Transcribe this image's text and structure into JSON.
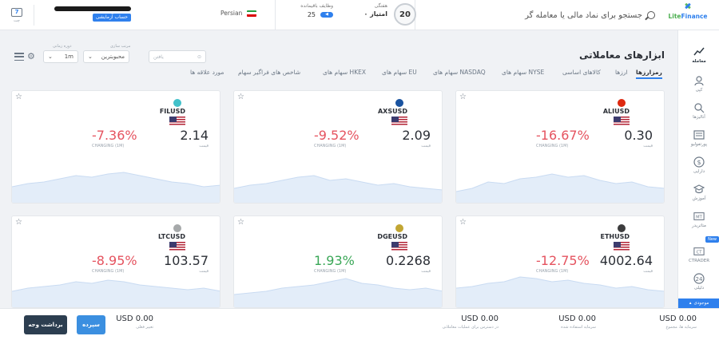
{
  "header": {
    "chat_label": "چت",
    "chat_count": "7",
    "account_badge": "حساب آزمایشی",
    "language": "Persian",
    "tasks_title": "وظایف باقیمانده",
    "tasks_count": "25",
    "weekly_title": "هفتگی",
    "weekly_points": "۰ امتیاز",
    "level": "20",
    "search_placeholder": "جستجو برای نماد مالی یا معامله گر",
    "logo_a": "Lite",
    "logo_b": "Finance"
  },
  "sidebar": {
    "items": [
      {
        "label": "معامله",
        "icon": "chart-icon"
      },
      {
        "label": "کپی",
        "icon": "copy-icon"
      },
      {
        "label": "آنالیزها",
        "icon": "analytics-icon"
      },
      {
        "label": "پورتفولیو",
        "icon": "portfolio-icon"
      },
      {
        "label": "دارایی",
        "icon": "dollar-icon"
      },
      {
        "label": "آموزش",
        "icon": "education-icon"
      },
      {
        "label": "متاتریدر",
        "icon": "metatrader-icon"
      },
      {
        "label": "CTRADER",
        "icon": "ctrader-icon"
      },
      {
        "label": "دلیلی",
        "icon": "other-icon"
      }
    ],
    "new_tag": "New",
    "bottom_label": "موجودی"
  },
  "main": {
    "title": "ابزارهای معاملاتی",
    "search_placeholder": "یافتن",
    "sort_label": "مرتب سازی",
    "sort_value": "محبوبترین",
    "period_label": "دوره زمانی",
    "period_value": "1m",
    "tabs": [
      {
        "label": "رمزارزها",
        "active": true
      },
      {
        "label": "ارزها",
        "active": false
      },
      {
        "label": "کالاهای اساسی",
        "active": false
      },
      {
        "label": "سهام های NYSE",
        "active": false
      },
      {
        "label": "سهام های NASDAQ",
        "active": false
      },
      {
        "label": "سهام های EU",
        "active": false
      },
      {
        "label": "سهام های HKEX",
        "active": false
      },
      {
        "label": "شاخص های فراگیر سهام",
        "active": false
      },
      {
        "label": "مورد علاقه ها",
        "active": false
      }
    ]
  },
  "cards": [
    {
      "symbol": "ALIUSD",
      "price": "0.30",
      "price_label": "قیمت",
      "change": "-16.67%",
      "change_label": "CHANGING (1M)",
      "positive": false,
      "coin": "flag-hk-icon",
      "coin_color": "#de2910"
    },
    {
      "symbol": "AXSUSD",
      "price": "2.09",
      "price_label": "قیمت",
      "change": "-9.52%",
      "change_label": "CHANGING (1M)",
      "positive": false,
      "coin": "axs-icon",
      "coin_color": "#1a53a0"
    },
    {
      "symbol": "FILUSD",
      "price": "2.14",
      "price_label": "قیمت",
      "change": "-7.36%",
      "change_label": "CHANGING (1M)",
      "positive": false,
      "coin": "fil-icon",
      "coin_color": "#42c1ca"
    },
    {
      "symbol": "ETHUSD",
      "price": "4002.64",
      "price_label": "قیمت",
      "change": "-12.75%",
      "change_label": "CHANGING (1M)",
      "positive": false,
      "coin": "eth-icon",
      "coin_color": "#3c3c3d"
    },
    {
      "symbol": "DGEUSD",
      "price": "0.2268",
      "price_label": "قیمت",
      "change": "1.93%",
      "change_label": "CHANGING (1M)",
      "positive": true,
      "coin": "doge-icon",
      "coin_color": "#c2a633"
    },
    {
      "symbol": "LTCUSD",
      "price": "103.57",
      "price_label": "قیمت",
      "change": "-8.95%",
      "change_label": "CHANGING (1M)",
      "positive": false,
      "coin": "ltc-icon",
      "coin_color": "#a6a9aa"
    }
  ],
  "colors": {
    "accent": "#2f80ed",
    "negative": "#e5535f",
    "positive": "#3aa757",
    "spark_fill": "#e3edf9",
    "spark_line": "#c9dbf2",
    "withdraw": "#2c3e50"
  },
  "bottom": {
    "withdraw_label": "برداشت وجه",
    "deposit_label": "سپرده",
    "stats": [
      {
        "value": "USD 0.00",
        "label": "تغییر فعلی"
      },
      {
        "value": "USD 0.00",
        "label": "در دسترس برای عملیات معاملاتی"
      },
      {
        "value": "USD 0.00",
        "label": "سرمایه استفاده شده"
      },
      {
        "value": "USD 0.00",
        "label": "سرمایه ها، مجموع"
      }
    ]
  }
}
